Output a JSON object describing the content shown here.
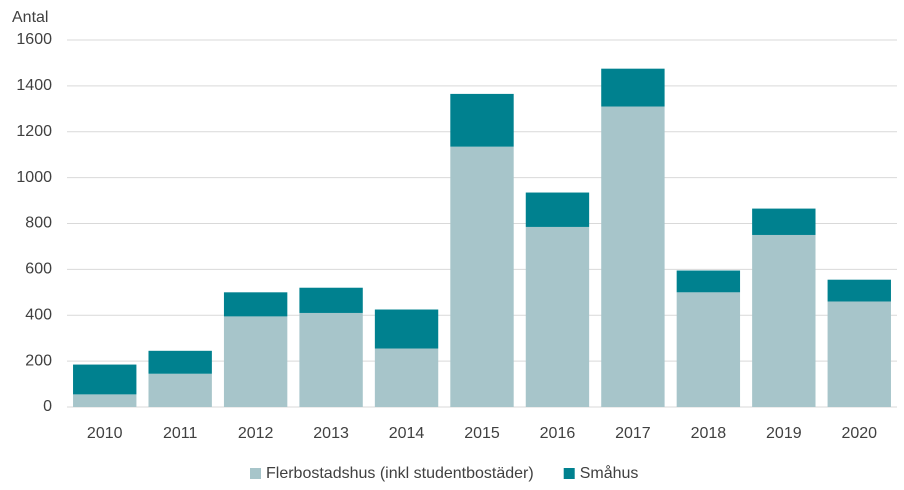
{
  "chart_data": {
    "type": "stacked_bar",
    "y_label": "Antal",
    "categories": [
      "2010",
      "2011",
      "2012",
      "2013",
      "2014",
      "2015",
      "2016",
      "2017",
      "2018",
      "2019",
      "2020"
    ],
    "series": [
      {
        "name": "Flerbostadshus (inkl studentbostäder)",
        "color": "#a7c5ca",
        "values": [
          55,
          145,
          395,
          410,
          255,
          1135,
          785,
          1310,
          500,
          750,
          460
        ]
      },
      {
        "name": "Småhus",
        "color": "#00818f",
        "values": [
          130,
          100,
          105,
          110,
          170,
          230,
          150,
          165,
          95,
          115,
          95
        ]
      }
    ],
    "ylim": [
      0,
      1600
    ],
    "yticks": [
      0,
      200,
      400,
      600,
      800,
      1000,
      1200,
      1400,
      1600
    ],
    "grid": true,
    "legend": "bottom"
  }
}
